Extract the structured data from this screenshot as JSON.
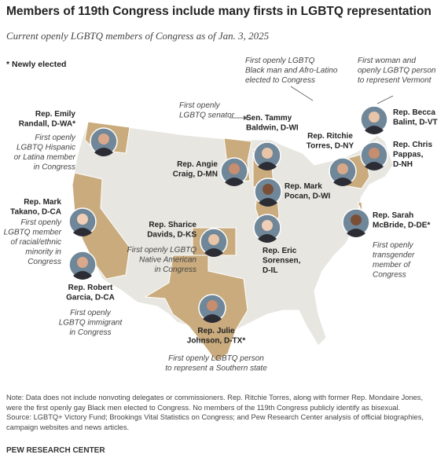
{
  "header": {
    "title": "Members of 119th Congress include many firsts in LGBTQ representation",
    "subtitle": "Current openly LGBTQ members of Congress as of Jan. 3, 2025",
    "legend": "* Newly elected"
  },
  "members": [
    {
      "name": [
        "Rep. Emily",
        "Randall, D-WA*"
      ],
      "note": [
        "First openly",
        "LGBTQ Hispanic",
        "or Latina member",
        "in Congress"
      ]
    },
    {
      "name": [
        "Sen. Tammy",
        "Baldwin, D-WI"
      ],
      "note": [
        "First openly",
        "LGBTQ senator"
      ]
    },
    {
      "name": [
        "Rep. Angie",
        "Craig, D-MN"
      ]
    },
    {
      "name": [
        "Rep. Mark",
        "Pocan, D-WI"
      ]
    },
    {
      "name": [
        "Rep. Eric",
        "Sorensen,",
        "D-IL"
      ]
    },
    {
      "name": [
        "Rep. Ritchie",
        "Torres, D-NY"
      ],
      "note": [
        "First openly LGBTQ",
        "Black man and Afro-Latino",
        "elected to Congress"
      ]
    },
    {
      "name": [
        "Rep. Becca",
        "Balint, D-VT"
      ],
      "note": [
        "First woman and",
        "openly LGBTQ person",
        "to represent Vermont"
      ]
    },
    {
      "name": [
        "Rep. Chris",
        "Pappas,",
        "D-NH"
      ]
    },
    {
      "name": [
        "Rep. Sarah",
        "McBride, D-DE*"
      ],
      "note": [
        "First openly",
        "transgender",
        "member of",
        "Congress"
      ]
    },
    {
      "name": [
        "Rep. Mark",
        "Takano, D-CA"
      ],
      "note": [
        "First openly",
        "LGBTQ member",
        "of racial/ethnic",
        "minority in",
        "Congress"
      ]
    },
    {
      "name": [
        "Rep. Robert",
        "Garcia, D-CA"
      ],
      "note": [
        "First openly",
        "LGBTQ immigrant",
        "in Congress"
      ]
    },
    {
      "name": [
        "Rep. Sharice",
        "Davids, D-KS"
      ],
      "note": [
        "First openly LGBTQ",
        "Native American",
        "in Congress"
      ]
    },
    {
      "name": [
        "Rep. Julie",
        "Johnson, D-TX*"
      ],
      "note": [
        "First openly LGBTQ person",
        "to represent a Southern state"
      ]
    }
  ],
  "footer": {
    "note": "Note: Data does not include nonvoting delegates or commissioners. Rep. Ritchie Torres, along with former Rep. Mondaire Jones, were the first openly gay Black men elected to Congress. No members of the 119th Congress publicly identify as bisexual.",
    "source": "Source: LGBTQ+ Victory Fund; Brookings Vital Statistics on Congress; and Pew Research Center analysis of official biographies, campaign websites and news articles.",
    "brand": "PEW RESEARCH CENTER"
  }
}
